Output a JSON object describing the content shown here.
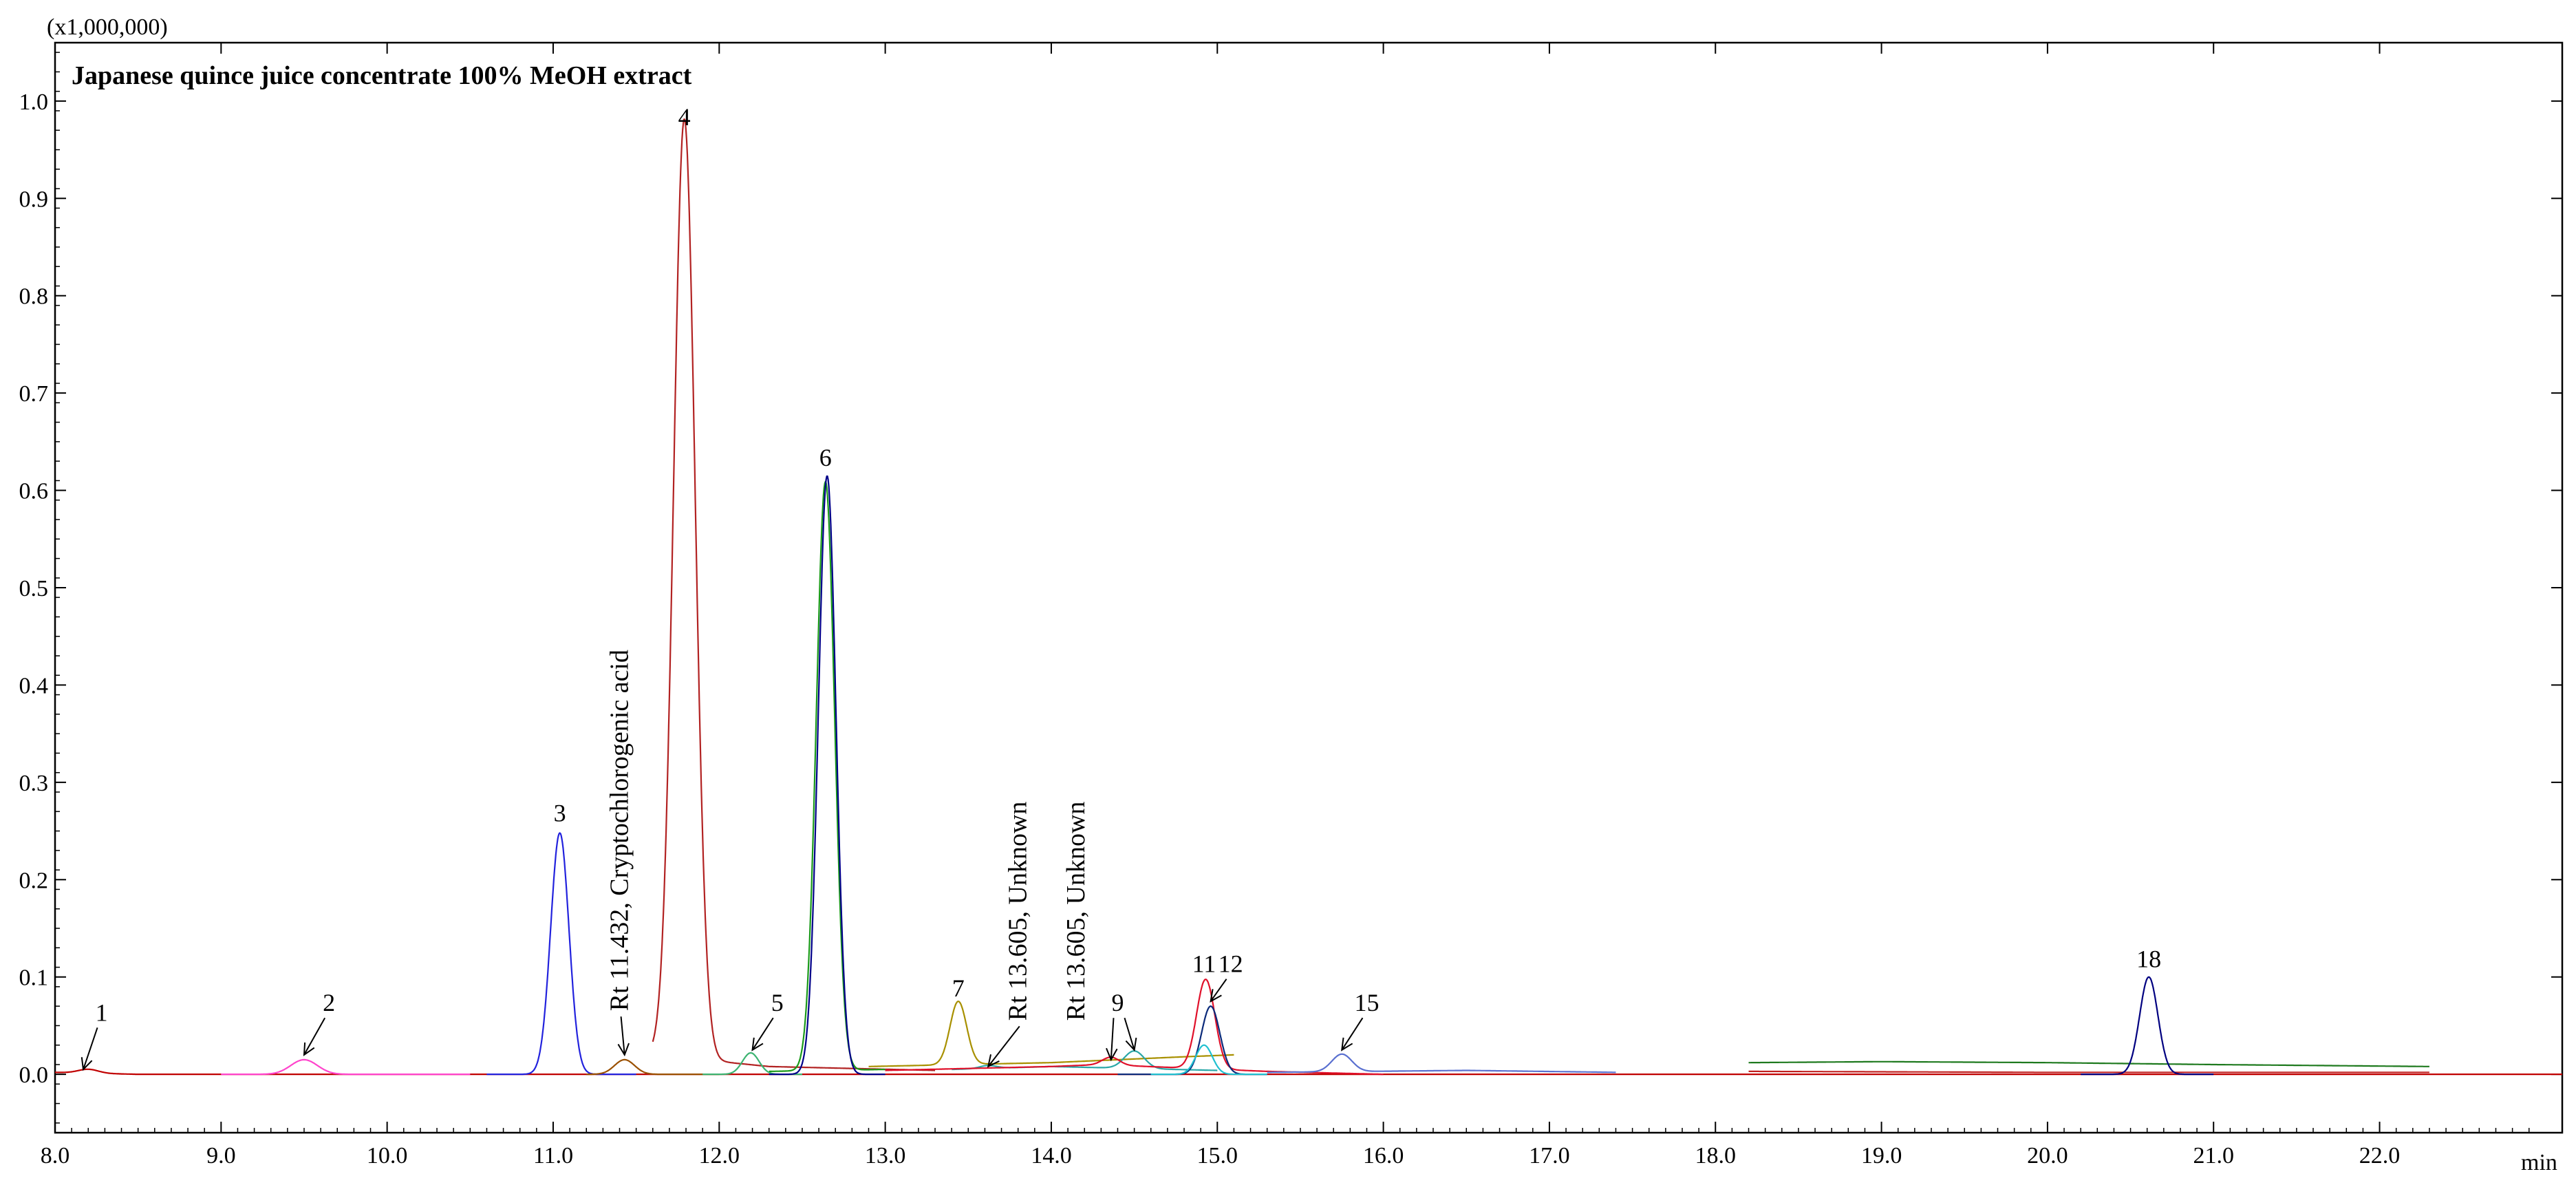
{
  "chart_data": {
    "type": "line",
    "title": "Japanese quince juice concentrate 100% MeOH extract",
    "y_multiplier": "(x1,000,000)",
    "xlabel": "min",
    "ylabel": "",
    "xlim": [
      8.0,
      23.1
    ],
    "ylim": [
      -0.06,
      1.06
    ],
    "grid": false,
    "x_ticks": [
      "8.0",
      "9.0",
      "10.0",
      "11.0",
      "12.0",
      "13.0",
      "14.0",
      "15.0",
      "16.0",
      "17.0",
      "18.0",
      "19.0",
      "20.0",
      "21.0",
      "22.0"
    ],
    "x_tick_values": [
      8,
      9,
      10,
      11,
      12,
      13,
      14,
      15,
      16,
      17,
      18,
      19,
      20,
      21,
      22
    ],
    "y_ticks": [
      "0.0",
      "0.1",
      "0.2",
      "0.3",
      "0.4",
      "0.5",
      "0.6",
      "0.7",
      "0.8",
      "0.9",
      "1.0"
    ],
    "y_tick_values": [
      0,
      0.1,
      0.2,
      0.3,
      0.4,
      0.5,
      0.6,
      0.7,
      0.8,
      0.9,
      1.0
    ],
    "series": [
      {
        "color": "#c00000",
        "baseline": [
          [
            8.0,
            0.002
          ],
          [
            8.5,
            0.0
          ],
          [
            23.1,
            0.0
          ]
        ],
        "peaks": [
          {
            "rt": 8.2,
            "height": 0.004,
            "width": 0.06
          }
        ]
      },
      {
        "color": "#ff44cc",
        "baseline": [
          [
            9.0,
            0.0
          ],
          [
            10.5,
            0.0
          ]
        ],
        "peaks": [
          {
            "rt": 9.5,
            "height": 0.015,
            "width": 0.08
          }
        ]
      },
      {
        "color": "#2222dd",
        "baseline": [
          [
            10.6,
            0.0
          ],
          [
            11.5,
            0.0
          ]
        ],
        "peaks": [
          {
            "rt": 11.04,
            "height": 0.248,
            "width": 0.055
          }
        ]
      },
      {
        "color": "#9a5000",
        "baseline": [
          [
            11.2,
            0.0
          ],
          [
            12.0,
            0.0
          ]
        ],
        "peaks": [
          {
            "rt": 11.43,
            "height": 0.015,
            "width": 0.06
          }
        ]
      },
      {
        "color": "#b22222",
        "baseline": [
          [
            11.6,
            0.02
          ],
          [
            12.3,
            0.008
          ],
          [
            13.3,
            0.004
          ]
        ],
        "peaks": [
          {
            "rt": 11.79,
            "height": 0.965,
            "width": 0.065
          }
        ]
      },
      {
        "color": "#3cb371",
        "baseline": [
          [
            11.9,
            0.0
          ],
          [
            12.5,
            0.0
          ]
        ],
        "peaks": [
          {
            "rt": 12.19,
            "height": 0.022,
            "width": 0.05
          }
        ]
      },
      {
        "color": "#1a9a1a",
        "baseline": [
          [
            12.3,
            0.003
          ],
          [
            13.0,
            0.005
          ]
        ],
        "peaks": [
          {
            "rt": 12.64,
            "height": 0.605,
            "width": 0.055
          }
        ]
      },
      {
        "color": "#000088",
        "baseline": [
          [
            12.3,
            0.0
          ],
          [
            13.0,
            0.0
          ]
        ],
        "peaks": [
          {
            "rt": 12.65,
            "height": 0.615,
            "width": 0.053
          }
        ]
      },
      {
        "color": "#a89000",
        "baseline": [
          [
            12.9,
            0.008
          ],
          [
            14.0,
            0.012
          ],
          [
            14.8,
            0.018
          ],
          [
            15.1,
            0.02
          ]
        ],
        "peaks": [
          {
            "rt": 13.44,
            "height": 0.065,
            "width": 0.05
          }
        ]
      },
      {
        "color": "#2aa7a7",
        "baseline": [
          [
            13.4,
            0.005
          ],
          [
            14.0,
            0.008
          ],
          [
            15.0,
            0.004
          ]
        ],
        "peaks": [
          {
            "rt": 13.62,
            "height": 0.003,
            "width": 0.05
          },
          {
            "rt": 14.5,
            "height": 0.018,
            "width": 0.06
          }
        ]
      },
      {
        "color": "#e0102a",
        "baseline": [
          [
            13.0,
            0.004
          ],
          [
            14.0,
            0.008
          ],
          [
            14.3,
            0.01
          ],
          [
            15.3,
            0.003
          ],
          [
            16.0,
            0.0
          ]
        ],
        "peaks": [
          {
            "rt": 14.36,
            "height": 0.008,
            "width": 0.05
          },
          {
            "rt": 14.93,
            "height": 0.092,
            "width": 0.055
          }
        ]
      },
      {
        "color": "#0b2a7a",
        "baseline": [
          [
            14.4,
            0.0
          ],
          [
            15.3,
            0.0
          ]
        ],
        "peaks": [
          {
            "rt": 14.96,
            "height": 0.07,
            "width": 0.055
          }
        ]
      },
      {
        "color": "#20c0d0",
        "baseline": [
          [
            14.6,
            0.0
          ],
          [
            15.3,
            0.0
          ]
        ],
        "peaks": [
          {
            "rt": 14.92,
            "height": 0.03,
            "width": 0.05
          }
        ]
      },
      {
        "color": "#5a70d0",
        "baseline": [
          [
            15.3,
            0.002
          ],
          [
            16.5,
            0.004
          ],
          [
            17.4,
            0.002
          ]
        ],
        "peaks": [
          {
            "rt": 15.75,
            "height": 0.018,
            "width": 0.06
          }
        ]
      },
      {
        "color": "#1f7a1f",
        "baseline": [
          [
            18.2,
            0.012
          ],
          [
            19.0,
            0.013
          ],
          [
            20.0,
            0.012
          ],
          [
            21.0,
            0.01
          ],
          [
            22.3,
            0.008
          ]
        ],
        "peaks": []
      },
      {
        "color": "#c02020",
        "baseline": [
          [
            18.2,
            0.003
          ],
          [
            20.0,
            0.002
          ],
          [
            22.3,
            0.002
          ]
        ],
        "peaks": []
      },
      {
        "color": "#000080",
        "baseline": [
          [
            20.2,
            0.0
          ],
          [
            21.0,
            0.0
          ]
        ],
        "peaks": [
          {
            "rt": 20.61,
            "height": 0.1,
            "width": 0.055
          }
        ]
      }
    ],
    "peak_labels": [
      {
        "text": "1",
        "x": 8.28,
        "y": 0.055,
        "arrow_to": [
          8.17,
          0.005
        ]
      },
      {
        "text": "2",
        "x": 9.65,
        "y": 0.065,
        "arrow_to": [
          9.5,
          0.02
        ]
      },
      {
        "text": "3",
        "x": 11.04,
        "y": 0.26
      },
      {
        "text": "4",
        "x": 11.79,
        "y": 0.975
      },
      {
        "text": "5",
        "x": 12.35,
        "y": 0.065,
        "arrow_to": [
          12.2,
          0.025
        ]
      },
      {
        "text": "6",
        "x": 12.64,
        "y": 0.625
      },
      {
        "text": "7",
        "x": 13.44,
        "y": 0.08
      },
      {
        "text": "9",
        "x": 14.4,
        "y": 0.065,
        "arrow_to": [
          14.36,
          0.015
        ],
        "arrow_to_2": [
          14.5,
          0.025
        ]
      },
      {
        "text": "11",
        "x": 14.92,
        "y": 0.105
      },
      {
        "text": "12",
        "x": 15.08,
        "y": 0.105,
        "arrow_to": [
          14.96,
          0.075
        ]
      },
      {
        "text": "15",
        "x": 15.9,
        "y": 0.065,
        "arrow_to": [
          15.75,
          0.025
        ]
      },
      {
        "text": "18",
        "x": 20.61,
        "y": 0.11
      }
    ],
    "annotations": [
      {
        "text": "Rt 11.432,  Cryptochlorogenic acid",
        "x": 11.45,
        "y": 0.065,
        "rotation": -90,
        "arrow_to": [
          11.43,
          0.02
        ]
      },
      {
        "text": "Rt 13.605,  Unknown",
        "x": 13.85,
        "y": 0.055,
        "rotation": -90,
        "arrow_to": [
          13.62,
          0.008
        ]
      },
      {
        "text": "Rt 13.605,  Unknown",
        "x": 14.2,
        "y": 0.055,
        "rotation": -90
      }
    ]
  }
}
